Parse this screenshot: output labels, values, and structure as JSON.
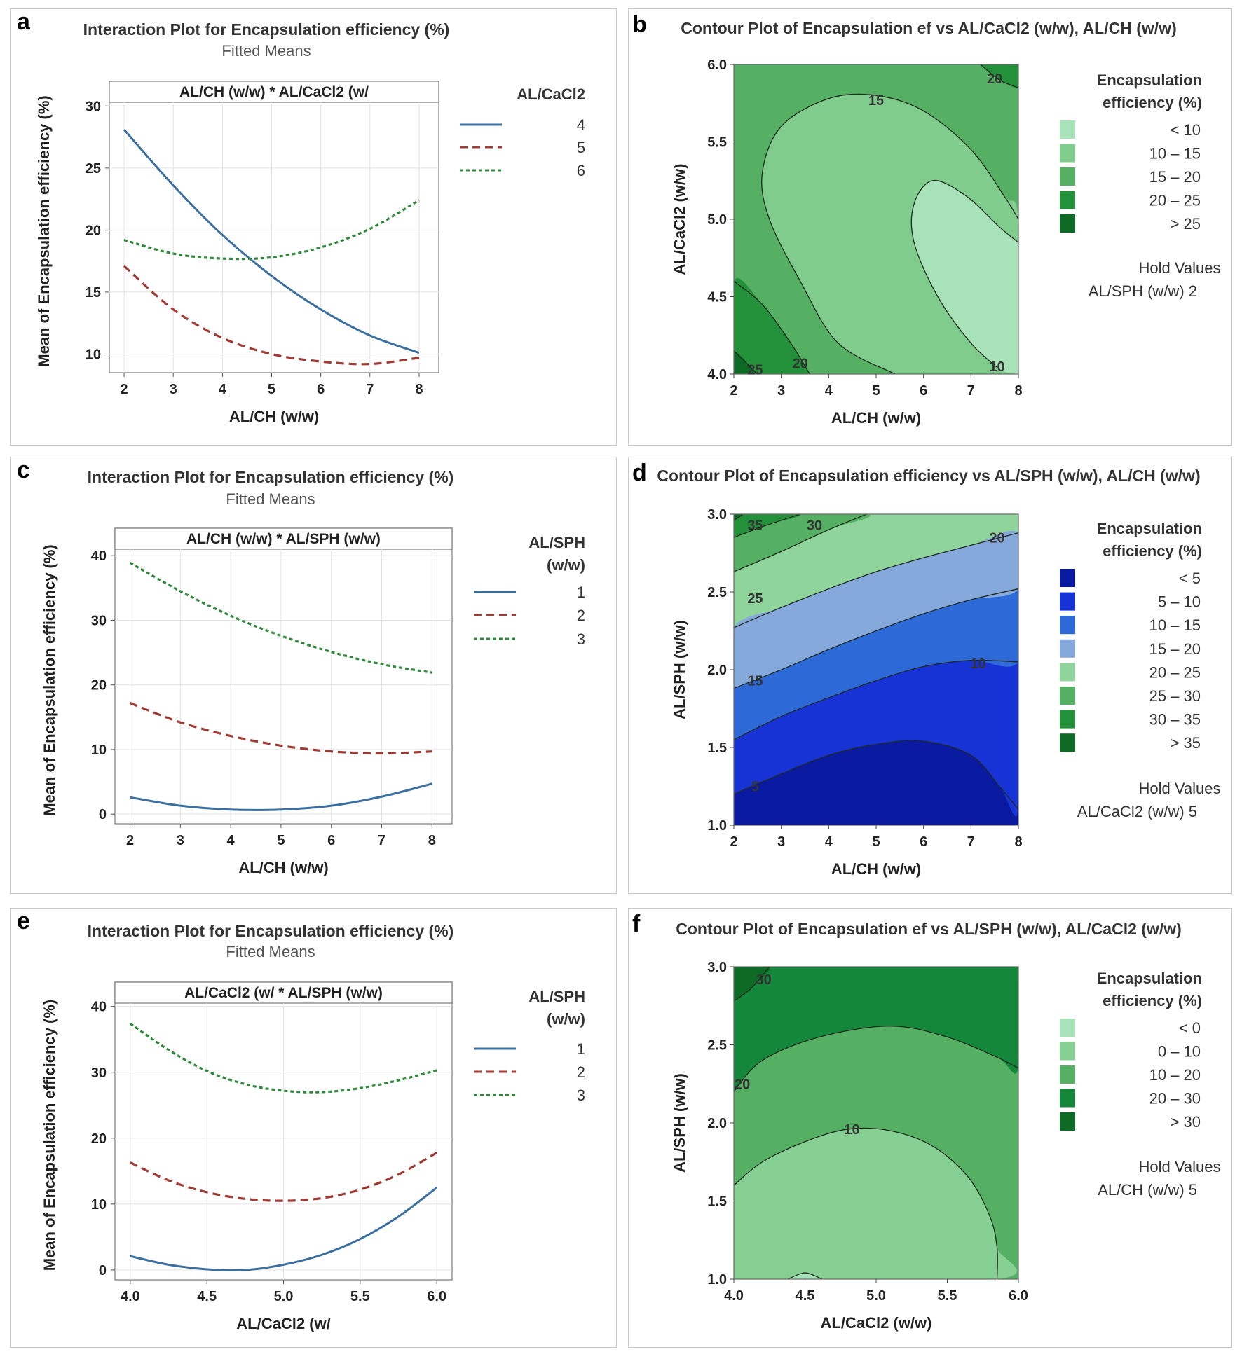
{
  "panel_letters": [
    "a",
    "b",
    "c",
    "d",
    "e",
    "f"
  ],
  "chart_data": [
    {
      "id": "a",
      "type": "line",
      "title": "Interaction Plot for Encapsulation efficiency (%)",
      "subtitle": "Fitted Means",
      "strip": "AL/CH (w/w) * AL/CaCl2 (w/",
      "xlabel": "AL/CH (w/w)",
      "ylabel": "Mean of Encapsulation efficiency (%)",
      "xlim": [
        1.7,
        8.4
      ],
      "ylim": [
        8.5,
        30.3
      ],
      "xticks": [
        2,
        3,
        4,
        5,
        6,
        7,
        8
      ],
      "yticks": [
        10,
        15,
        20,
        25,
        30
      ],
      "xtick_labels": [
        "2",
        "3",
        "4",
        "5",
        "6",
        "7",
        "8"
      ],
      "ytick_labels": [
        "10",
        "15",
        "20",
        "25",
        "30"
      ],
      "grid": true,
      "legend_title": "AL/CaCl2",
      "legend_position": "right",
      "x": [
        2,
        3,
        4,
        5,
        6,
        7,
        8
      ],
      "series": [
        {
          "name": "4",
          "color": "#3a6fa0",
          "dash": "solid",
          "values": [
            28.1,
            23.6,
            19.6,
            16.3,
            13.6,
            11.5,
            10.1
          ]
        },
        {
          "name": "5",
          "color": "#a03a32",
          "dash": "dashed",
          "values": [
            17.1,
            13.6,
            11.3,
            10.0,
            9.4,
            9.2,
            9.7
          ]
        },
        {
          "name": "6",
          "color": "#2e8a3a",
          "dash": "dotted",
          "values": [
            19.2,
            18.1,
            17.7,
            17.8,
            18.6,
            20.1,
            22.4
          ]
        }
      ]
    },
    {
      "id": "b",
      "type": "heatmap",
      "title": "Contour Plot of Encapsulation ef vs AL/CaCl2 (w/w), AL/CH (w/w)",
      "xlabel": "AL/CH (w/w)",
      "ylabel": "AL/CaCl2 (w/w)",
      "xlim": [
        2,
        8
      ],
      "ylim": [
        4,
        6
      ],
      "xticks": [
        2,
        3,
        4,
        5,
        6,
        7,
        8
      ],
      "yticks": [
        4.0,
        4.5,
        5.0,
        5.5,
        6.0
      ],
      "xtick_labels": [
        "2",
        "3",
        "4",
        "5",
        "6",
        "7",
        "8"
      ],
      "ytick_labels": [
        "4.0",
        "4.5",
        "5.0",
        "5.5",
        "6.0"
      ],
      "legend_title": [
        "Encapsulation",
        "efficiency (%)"
      ],
      "legend_position": "right",
      "levels": [
        {
          "label": "<  10",
          "color": "#a8e2b8"
        },
        {
          "label": "10  –  15",
          "color": "#7fcc8c"
        },
        {
          "label": "15  –  20",
          "color": "#56b063"
        },
        {
          "label": "20  –  25",
          "color": "#22913a"
        },
        {
          "label": ">  25",
          "color": "#0d6b26"
        }
      ],
      "contour_labels": [
        {
          "text": "15",
          "x": 5.0,
          "y": 5.77
        },
        {
          "text": "20",
          "x": 7.5,
          "y": 5.91
        },
        {
          "text": "20",
          "x": 3.4,
          "y": 4.07
        },
        {
          "text": "25",
          "x": 2.45,
          "y": 4.03
        },
        {
          "text": "10",
          "x": 7.55,
          "y": 4.05
        }
      ],
      "hold_title": "Hold Values",
      "hold_value": "AL/SPH (w/w)   2"
    },
    {
      "id": "c",
      "type": "line",
      "title": "Interaction Plot for Encapsulation efficiency (%)",
      "subtitle": "Fitted Means",
      "strip": "AL/CH (w/w) * AL/SPH (w/w)",
      "xlabel": "AL/CH (w/w)",
      "ylabel": "Mean of Encapsulation efficiency (%)",
      "xlim": [
        1.7,
        8.4
      ],
      "ylim": [
        -1.5,
        41
      ],
      "xticks": [
        2,
        3,
        4,
        5,
        6,
        7,
        8
      ],
      "yticks": [
        0,
        10,
        20,
        30,
        40
      ],
      "xtick_labels": [
        "2",
        "3",
        "4",
        "5",
        "6",
        "7",
        "8"
      ],
      "ytick_labels": [
        "0",
        "10",
        "20",
        "30",
        "40"
      ],
      "grid": true,
      "legend_title": [
        "AL/SPH",
        "(w/w)"
      ],
      "legend_position": "right",
      "x": [
        2,
        3,
        4,
        5,
        6,
        7,
        8
      ],
      "series": [
        {
          "name": "1",
          "color": "#3a6fa0",
          "dash": "solid",
          "values": [
            2.6,
            1.3,
            0.7,
            0.7,
            1.3,
            2.7,
            4.7
          ]
        },
        {
          "name": "2",
          "color": "#a03a32",
          "dash": "dashed",
          "values": [
            17.2,
            14.2,
            12.1,
            10.6,
            9.7,
            9.4,
            9.7
          ]
        },
        {
          "name": "3",
          "color": "#2e8a3a",
          "dash": "dotted",
          "values": [
            38.9,
            34.5,
            30.7,
            27.6,
            25.1,
            23.2,
            21.9
          ]
        }
      ]
    },
    {
      "id": "d",
      "type": "heatmap",
      "title": "Contour Plot of Encapsulation efficiency vs AL/SPH (w/w), AL/CH (w/w)",
      "xlabel": "AL/CH (w/w)",
      "ylabel": "AL/SPH (w/w)",
      "xlim": [
        2,
        8
      ],
      "ylim": [
        1,
        3
      ],
      "xticks": [
        2,
        3,
        4,
        5,
        6,
        7,
        8
      ],
      "yticks": [
        1.0,
        1.5,
        2.0,
        2.5,
        3.0
      ],
      "xtick_labels": [
        "2",
        "3",
        "4",
        "5",
        "6",
        "7",
        "8"
      ],
      "ytick_labels": [
        "1.0",
        "1.5",
        "2.0",
        "2.5",
        "3.0"
      ],
      "legend_title": [
        "Encapsulation",
        "efficiency (%)"
      ],
      "legend_position": "right",
      "levels": [
        {
          "label": "<   5",
          "color": "#0a1aa0"
        },
        {
          "label": "5  –  10",
          "color": "#1733d6"
        },
        {
          "label": "10  –  15",
          "color": "#2d6ad8"
        },
        {
          "label": "15  –  20",
          "color": "#86a9dc"
        },
        {
          "label": "20  –  25",
          "color": "#8fd49a"
        },
        {
          "label": "25  –  30",
          "color": "#56b063"
        },
        {
          "label": "30  –  35",
          "color": "#22913a"
        },
        {
          "label": ">  35",
          "color": "#0d6b26"
        }
      ],
      "contour_labels": [
        {
          "text": "35",
          "x": 2.45,
          "y": 2.93
        },
        {
          "text": "30",
          "x": 3.7,
          "y": 2.93
        },
        {
          "text": "25",
          "x": 2.45,
          "y": 2.46
        },
        {
          "text": "20",
          "x": 7.55,
          "y": 2.85
        },
        {
          "text": "15",
          "x": 2.45,
          "y": 1.93
        },
        {
          "text": "10",
          "x": 7.15,
          "y": 2.04
        },
        {
          "text": "5",
          "x": 2.45,
          "y": 1.25
        }
      ],
      "hold_title": "Hold Values",
      "hold_value": "AL/CaCl2 (w/w)   5"
    },
    {
      "id": "e",
      "type": "line",
      "title": "Interaction Plot for Encapsulation efficiency (%)",
      "subtitle": "Fitted Means",
      "strip": "AL/CaCl2 (w/ * AL/SPH (w/w)",
      "xlabel": "AL/CaCl2 (w/",
      "ylabel": "Mean of Encapsulation efficiency (%)",
      "xlim": [
        3.9,
        6.1
      ],
      "ylim": [
        -1.5,
        40.5
      ],
      "xticks": [
        4.0,
        4.5,
        5.0,
        5.5,
        6.0
      ],
      "yticks": [
        0,
        10,
        20,
        30,
        40
      ],
      "xtick_labels": [
        "4.0",
        "4.5",
        "5.0",
        "5.5",
        "6.0"
      ],
      "ytick_labels": [
        "0",
        "10",
        "20",
        "30",
        "40"
      ],
      "grid": true,
      "legend_title": [
        "AL/SPH",
        "(w/w)"
      ],
      "legend_position": "right",
      "x": [
        4.0,
        4.25,
        4.5,
        4.75,
        5.0,
        5.25,
        5.5,
        5.75,
        6.0
      ],
      "series": [
        {
          "name": "1",
          "color": "#3a6fa0",
          "dash": "solid",
          "values": [
            2.1,
            0.8,
            0.1,
            0.0,
            0.8,
            2.3,
            4.7,
            8.1,
            12.5
          ]
        },
        {
          "name": "2",
          "color": "#a03a32",
          "dash": "dashed",
          "values": [
            16.3,
            13.6,
            11.8,
            10.8,
            10.5,
            10.9,
            12.2,
            14.5,
            17.8
          ]
        },
        {
          "name": "3",
          "color": "#2e8a3a",
          "dash": "dotted",
          "values": [
            37.4,
            33.4,
            30.2,
            28.2,
            27.2,
            27.0,
            27.6,
            28.8,
            30.3
          ]
        }
      ]
    },
    {
      "id": "f",
      "type": "heatmap",
      "title": "Contour Plot of Encapsulation ef vs AL/SPH (w/w), AL/CaCl2 (w/w)",
      "xlabel": "AL/CaCl2 (w/w)",
      "ylabel": "AL/SPH (w/w)",
      "xlim": [
        4,
        6
      ],
      "ylim": [
        1,
        3
      ],
      "xticks": [
        4.0,
        4.5,
        5.0,
        5.5,
        6.0
      ],
      "yticks": [
        1.0,
        1.5,
        2.0,
        2.5,
        3.0
      ],
      "xtick_labels": [
        "4.0",
        "4.5",
        "5.0",
        "5.5",
        "6.0"
      ],
      "ytick_labels": [
        "1.0",
        "1.5",
        "2.0",
        "2.5",
        "3.0"
      ],
      "legend_title": [
        "Encapsulation",
        "efficiency (%)"
      ],
      "legend_position": "right",
      "levels": [
        {
          "label": "<   0",
          "color": "#a8e2b8"
        },
        {
          "label": "0  –  10",
          "color": "#86d094"
        },
        {
          "label": "10  –  20",
          "color": "#56b063"
        },
        {
          "label": "20  –  30",
          "color": "#14873a"
        },
        {
          "label": ">  30",
          "color": "#0d6b26"
        }
      ],
      "contour_labels": [
        {
          "text": "30",
          "x": 4.21,
          "y": 2.92
        },
        {
          "text": "20",
          "x": 4.06,
          "y": 2.25
        },
        {
          "text": "10",
          "x": 4.83,
          "y": 1.96
        }
      ],
      "hold_title": "Hold Values",
      "hold_value": "AL/CH (w/w)   5"
    }
  ]
}
